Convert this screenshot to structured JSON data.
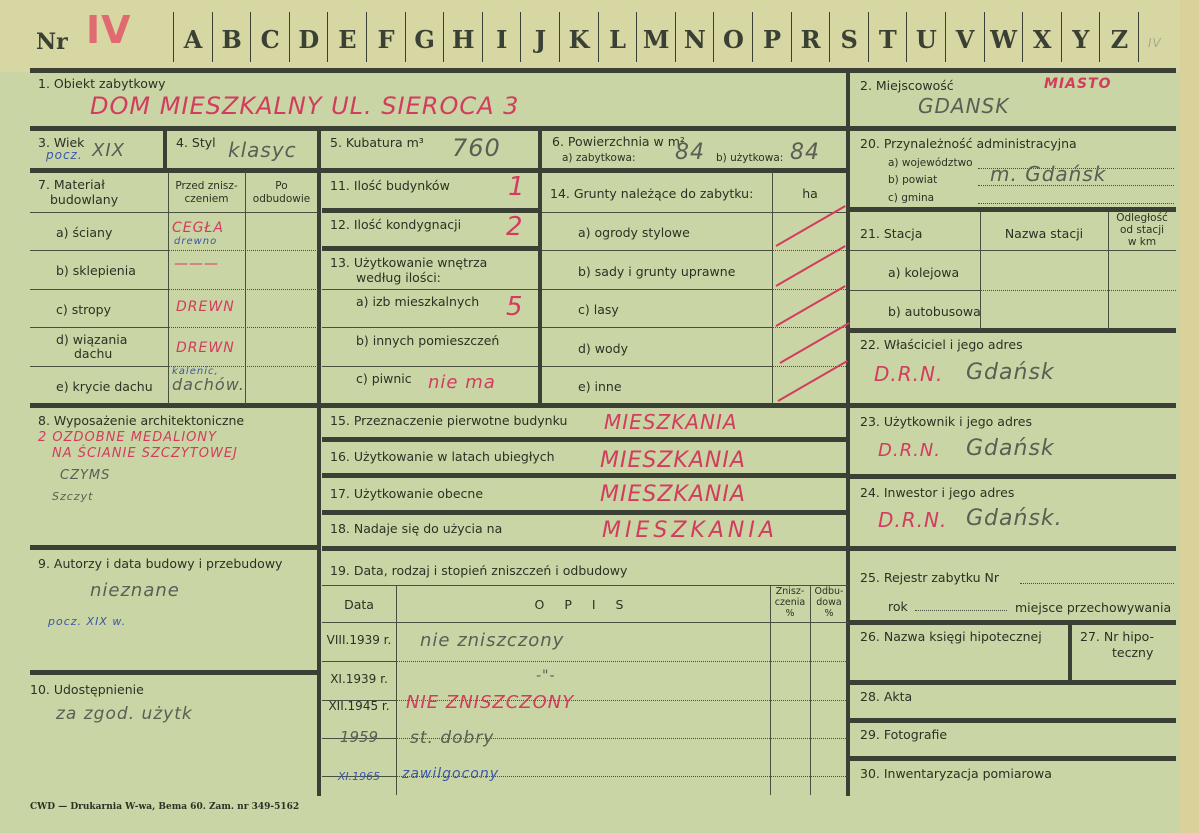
{
  "header": {
    "nr_label": "Nr",
    "nr_value": "IV",
    "letters": [
      "A",
      "B",
      "C",
      "D",
      "E",
      "F",
      "G",
      "H",
      "I",
      "J",
      "K",
      "L",
      "M",
      "N",
      "O",
      "P",
      "R",
      "S",
      "T",
      "U",
      "V",
      "W",
      "X",
      "Y",
      "Z"
    ],
    "corner_mark": "IV"
  },
  "s1": {
    "label": "1. Obiekt zabytkowy",
    "value": "DOM  MIESZKALNY  UL. SIEROCA 3"
  },
  "s2": {
    "label": "2. Miejscowość",
    "note": "MIASTO",
    "value": "GDANSK"
  },
  "s3": {
    "label": "3. Wiek",
    "prefix": "pocz.",
    "value": "XIX"
  },
  "s4": {
    "label": "4. Styl",
    "value": "klasyc"
  },
  "s5": {
    "label": "5. Kubatura m³",
    "value": "760"
  },
  "s6": {
    "label": "6. Powierzchnia w m²",
    "a_label": "a) zabytkowa:",
    "a_value": "84",
    "b_label": "b) użytkowa:",
    "b_value": "84"
  },
  "s7": {
    "label_1": "7. Materiał",
    "label_2": "budowlany",
    "col_before_1": "Przed znisz-",
    "col_before_2": "czeniem",
    "col_after_1": "Po",
    "col_after_2": "odbudowie",
    "rows": [
      {
        "label": "a) ściany",
        "before": "CEGŁA",
        "before_note": "drewno"
      },
      {
        "label": "b) sklepienia",
        "before": "———"
      },
      {
        "label": "c) stropy",
        "before": "DREWN"
      },
      {
        "label_1": "d) wiązania",
        "label_2": "dachu",
        "before": "DREWN"
      },
      {
        "label": "e) krycie dachu",
        "before_note": "kalenic,",
        "before": "dachów."
      }
    ]
  },
  "s8": {
    "label": "8. Wyposażenie architektoniczne",
    "line1": "2 OZDOBNE  MEDALIONY",
    "line2": "NA  ŚCIANIE  SZCZYTOWEJ",
    "line3": "CZYMS",
    "line4": "Szczyt"
  },
  "s9": {
    "label": "9. Autorzy i data budowy i przebudowy",
    "value": "nieznane",
    "note": "pocz. XIX w."
  },
  "s10": {
    "label": "10. Udostępnienie",
    "value": "za zgod. użytk"
  },
  "s11": {
    "label": "11. Ilość budynków",
    "value": "1"
  },
  "s12": {
    "label": "12. Ilość kondygnacji",
    "value": "2"
  },
  "s13": {
    "label_1": "13. Użytkowanie wnętrza",
    "label_2": "według ilości:",
    "a_label": "a) izb mieszkalnych",
    "a_value": "5",
    "b_label": "b) innych pomieszczeń",
    "c_label": "c) piwnic",
    "c_value": "nie ma"
  },
  "s14": {
    "label": "14. Grunty należące do zabytku:",
    "unit": "ha",
    "rows": [
      "a) ogrody stylowe",
      "b) sady i grunty uprawne",
      "c) lasy",
      "d) wody",
      "e) inne"
    ]
  },
  "s15": {
    "label": "15. Przeznaczenie pierwotne budynku",
    "value": "MIESZKANIA"
  },
  "s16": {
    "label": "16. Użytkowanie w latach ubiegłych",
    "value": "MIESZKANIA"
  },
  "s17": {
    "label": "17. Użytkowanie obecne",
    "value": "MIESZKANIA"
  },
  "s18": {
    "label": "18. Nadaje się do użycia na",
    "value": "MIESZKANIA"
  },
  "s19": {
    "label": "19. Data, rodzaj i stopień zniszczeń i odbudowy",
    "col_date": "Data",
    "col_desc": "O P I S",
    "col_destr_1": "Znisz-",
    "col_destr_2": "czenia",
    "col_destr_3": "%",
    "col_rebuild_1": "Odbu-",
    "col_rebuild_2": "dowa",
    "col_rebuild_3": "%",
    "rows": [
      {
        "date": "VIII.1939 r.",
        "desc": "nie zniszczony"
      },
      {
        "date": "XI.1939 r.",
        "desc": "-\"-"
      },
      {
        "date": "XII.1945 r.",
        "desc": "NIE  ZNISZCZONY"
      },
      {
        "date": "1959",
        "desc": "st. dobry"
      },
      {
        "date": "XI.1965",
        "desc": "zawilgocony"
      }
    ]
  },
  "s20": {
    "label": "20. Przynależność administracyjna",
    "a_label": "a) województwo",
    "b_label": "b) powiat",
    "c_label": "c) gmina",
    "b_value": "m. Gdańsk"
  },
  "s21": {
    "label": "21. Stacja",
    "col_name": "Nazwa stacji",
    "col_dist_1": "Odległość",
    "col_dist_2": "od stacji",
    "col_dist_3": "w km",
    "a_label": "a) kolejowa",
    "b_label": "b) autobusowa"
  },
  "s22": {
    "label": "22. Właściciel i jego adres",
    "prefix": "D.R.N.",
    "value": "Gdańsk"
  },
  "s23": {
    "label": "23. Użytkownik i jego adres",
    "prefix": "D.R.N.",
    "value": "Gdańsk"
  },
  "s24": {
    "label": "24. Inwestor i jego adres",
    "prefix": "D.R.N.",
    "value": "Gdańsk."
  },
  "s25": {
    "label": "25. Rejestr zabytku Nr",
    "year_label": "rok",
    "place_label": "miejsce przechowywania"
  },
  "s26": {
    "label": "26. Nazwa księgi hipotecznej"
  },
  "s27": {
    "label_1": "27. Nr hipo-",
    "label_2": "teczny"
  },
  "s28": {
    "label": "28. Akta"
  },
  "s29": {
    "label": "29. Fotografie"
  },
  "s30": {
    "label": "30. Inwentaryzacja pomiarowa"
  },
  "footer": {
    "printer": "CWD — Drukarnia W-wa, Bema 60. Zam. nr 349-5162"
  },
  "colors": {
    "paper": "#c9d5a4",
    "ink_red": "#d23c5e",
    "ink_gray": "#5a5e55",
    "ink_blue": "#3a56a8",
    "print": "#3a4033"
  }
}
